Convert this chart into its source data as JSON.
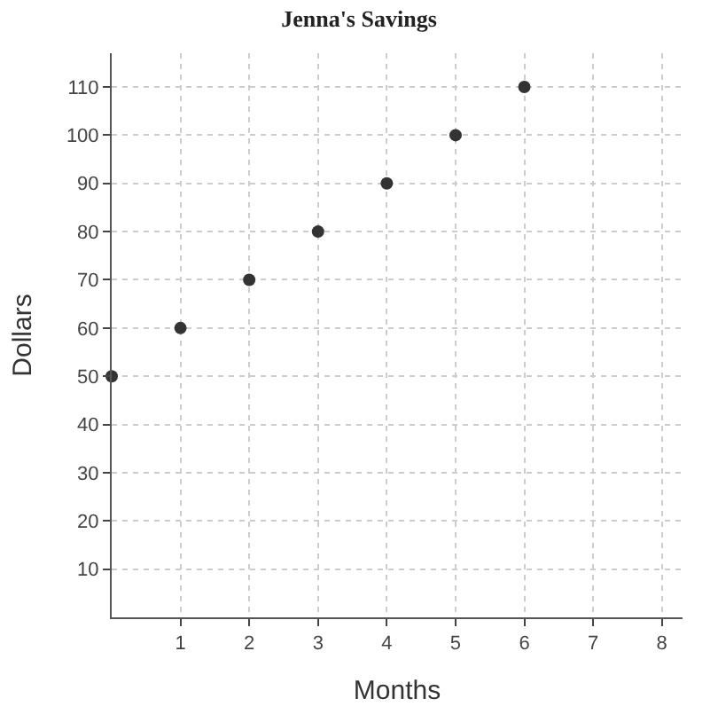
{
  "chart_data": {
    "type": "scatter",
    "title": "Jenna's Savings",
    "xlabel": "Months",
    "ylabel": "Dollars",
    "x": [
      0,
      1,
      2,
      3,
      4,
      5,
      6
    ],
    "series": [
      {
        "color": "#333333",
        "values": [
          50,
          60,
          70,
          80,
          90,
          100,
          110
        ]
      }
    ],
    "xlim": [
      0,
      8.3
    ],
    "ylim": [
      0,
      117
    ],
    "xticks": [
      1,
      2,
      3,
      4,
      5,
      6,
      7,
      8
    ],
    "yticks": [
      10,
      20,
      30,
      40,
      50,
      60,
      70,
      80,
      90,
      100,
      110
    ],
    "grid": true,
    "marker": "circle"
  }
}
